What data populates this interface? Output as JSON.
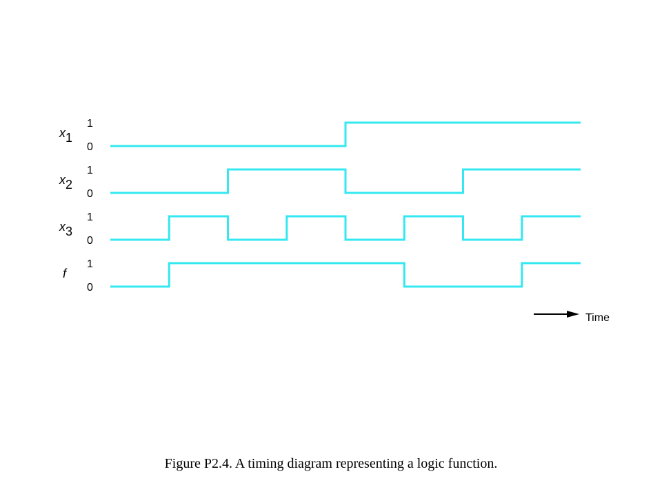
{
  "caption": "Figure P2.4.  A timing diagram representing a logic function.",
  "waveform_color": "#33e8f0",
  "time_label": "Time",
  "level_high_label": "1",
  "level_low_label": "0",
  "time_steps": 8,
  "signals": [
    {
      "id": "x1",
      "name": "x",
      "subscript": "1",
      "levels": [
        0,
        0,
        0,
        0,
        1,
        1,
        1,
        1
      ]
    },
    {
      "id": "x2",
      "name": "x",
      "subscript": "2",
      "levels": [
        0,
        0,
        1,
        1,
        0,
        0,
        1,
        1
      ]
    },
    {
      "id": "x3",
      "name": "x",
      "subscript": "3",
      "levels": [
        0,
        1,
        0,
        1,
        0,
        1,
        0,
        1
      ]
    },
    {
      "id": "f",
      "name": "f",
      "subscript": "",
      "levels": [
        0,
        1,
        1,
        1,
        1,
        0,
        0,
        1
      ]
    }
  ]
}
